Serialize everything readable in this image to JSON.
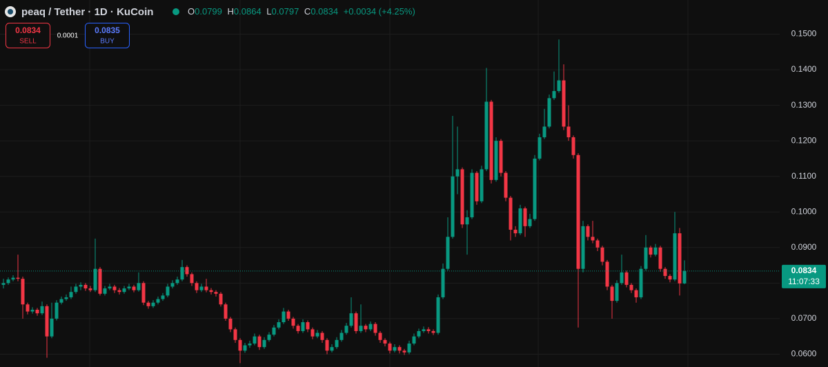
{
  "chart_data": {
    "type": "candlestick",
    "title": "peaq / Tether · 1D · KuCoin",
    "open": [
      0.0795,
      0.08,
      0.081,
      0.0815,
      0.0812,
      0.074,
      0.072,
      0.0725,
      0.0715,
      0.0735,
      0.065,
      0.07,
      0.0745,
      0.0755,
      0.076,
      0.0775,
      0.079,
      0.0795,
      0.0785,
      0.078,
      0.084,
      0.077,
      0.0785,
      0.079,
      0.078,
      0.0775,
      0.0785,
      0.079,
      0.078,
      0.08,
      0.0745,
      0.0735,
      0.0745,
      0.0755,
      0.0765,
      0.079,
      0.08,
      0.081,
      0.0845,
      0.0825,
      0.08,
      0.078,
      0.079,
      0.078,
      0.0775,
      0.077,
      0.074,
      0.07,
      0.067,
      0.064,
      0.061,
      0.0625,
      0.063,
      0.065,
      0.062,
      0.064,
      0.0655,
      0.0675,
      0.069,
      0.072,
      0.07,
      0.068,
      0.0665,
      0.069,
      0.067,
      0.065,
      0.066,
      0.064,
      0.061,
      0.062,
      0.064,
      0.066,
      0.068,
      0.0715,
      0.0665,
      0.068,
      0.067,
      0.0685,
      0.066,
      0.064,
      0.063,
      0.061,
      0.062,
      0.061,
      0.0605,
      0.063,
      0.065,
      0.0665,
      0.067,
      0.0665,
      0.066,
      0.076,
      0.084,
      0.093,
      0.11,
      0.112,
      0.0965,
      0.0985,
      0.111,
      0.103,
      0.112,
      0.131,
      0.109,
      0.12,
      0.111,
      0.104,
      0.095,
      0.094,
      0.101,
      0.096,
      0.098,
      0.115,
      0.121,
      0.124,
      0.132,
      0.134,
      0.137,
      0.124,
      0.121,
      0.116,
      0.084,
      0.096,
      0.093,
      0.092,
      0.09,
      0.086,
      0.079,
      0.075,
      0.08,
      0.083,
      0.0795,
      0.078,
      0.076,
      0.084,
      0.09,
      0.088,
      0.09,
      0.084,
      0.082,
      0.081,
      0.094,
      0.0799
    ],
    "high": [
      0.0812,
      0.0816,
      0.0822,
      0.088,
      0.0818,
      0.0745,
      0.0732,
      0.073,
      0.0748,
      0.074,
      0.0745,
      0.0752,
      0.0762,
      0.0768,
      0.079,
      0.0798,
      0.0802,
      0.08,
      0.0792,
      0.0925,
      0.0845,
      0.0792,
      0.0798,
      0.0795,
      0.0786,
      0.0792,
      0.0798,
      0.0795,
      0.083,
      0.0805,
      0.075,
      0.0752,
      0.0762,
      0.0772,
      0.0798,
      0.0808,
      0.0818,
      0.0865,
      0.085,
      0.083,
      0.0805,
      0.0798,
      0.0812,
      0.0786,
      0.078,
      0.0775,
      0.0745,
      0.0705,
      0.0675,
      0.0645,
      0.0632,
      0.0638,
      0.0658,
      0.0655,
      0.0648,
      0.0662,
      0.0682,
      0.0698,
      0.073,
      0.0725,
      0.0705,
      0.0685,
      0.0698,
      0.0695,
      0.0675,
      0.0668,
      0.0665,
      0.0645,
      0.0628,
      0.0648,
      0.0668,
      0.0688,
      0.076,
      0.072,
      0.074,
      0.0685,
      0.0692,
      0.069,
      0.0665,
      0.0645,
      0.0635,
      0.0628,
      0.0625,
      0.0615,
      0.0638,
      0.0658,
      0.0672,
      0.0678,
      0.0676,
      0.067,
      0.0768,
      0.0855,
      0.0985,
      0.127,
      0.124,
      0.1125,
      0.1005,
      0.112,
      0.1115,
      0.113,
      0.1405,
      0.1315,
      0.121,
      0.1205,
      0.1115,
      0.1045,
      0.096,
      0.102,
      0.1015,
      0.0995,
      0.116,
      0.122,
      0.129,
      0.133,
      0.1395,
      0.1485,
      0.1415,
      0.13,
      0.1215,
      0.1165,
      0.0975,
      0.0965,
      0.0975,
      0.0925,
      0.0905,
      0.0865,
      0.0795,
      0.0808,
      0.088,
      0.0835,
      0.08,
      0.0785,
      0.0848,
      0.0935,
      0.0905,
      0.091,
      0.0905,
      0.0845,
      0.0825,
      0.1,
      0.0955,
      0.0864
    ],
    "low": [
      0.0785,
      0.0795,
      0.0805,
      0.0805,
      0.07,
      0.0712,
      0.0714,
      0.0708,
      0.071,
      0.059,
      0.0645,
      0.0695,
      0.074,
      0.075,
      0.0755,
      0.077,
      0.078,
      0.0778,
      0.0775,
      0.0775,
      0.0765,
      0.0765,
      0.078,
      0.0772,
      0.0768,
      0.077,
      0.078,
      0.0774,
      0.0776,
      0.0738,
      0.0728,
      0.073,
      0.074,
      0.075,
      0.076,
      0.0785,
      0.0795,
      0.0805,
      0.0818,
      0.0792,
      0.0772,
      0.0775,
      0.0774,
      0.0768,
      0.0762,
      0.0734,
      0.0694,
      0.0662,
      0.0632,
      0.0575,
      0.0604,
      0.0618,
      0.0625,
      0.0612,
      0.0615,
      0.0635,
      0.065,
      0.067,
      0.0685,
      0.0694,
      0.0672,
      0.0658,
      0.066,
      0.0662,
      0.0642,
      0.0645,
      0.0632,
      0.06,
      0.0605,
      0.0615,
      0.0635,
      0.0655,
      0.0675,
      0.0658,
      0.066,
      0.0662,
      0.0665,
      0.0652,
      0.0632,
      0.0622,
      0.0602,
      0.0605,
      0.0602,
      0.0598,
      0.06,
      0.0625,
      0.0645,
      0.066,
      0.0658,
      0.0654,
      0.0655,
      0.0755,
      0.0835,
      0.0925,
      0.105,
      0.0955,
      0.088,
      0.098,
      0.102,
      0.1025,
      0.1115,
      0.108,
      0.1085,
      0.11,
      0.103,
      0.092,
      0.093,
      0.0935,
      0.093,
      0.0955,
      0.0975,
      0.1145,
      0.1205,
      0.1235,
      0.1315,
      0.1335,
      0.123,
      0.12,
      0.115,
      0.0675,
      0.083,
      0.092,
      0.0912,
      0.089,
      0.085,
      0.078,
      0.07,
      0.0745,
      0.0795,
      0.0788,
      0.0772,
      0.0745,
      0.0755,
      0.0835,
      0.0872,
      0.0875,
      0.0832,
      0.0812,
      0.0802,
      0.0805,
      0.0765,
      0.0797
    ],
    "close": [
      0.08,
      0.081,
      0.0815,
      0.0812,
      0.074,
      0.072,
      0.0725,
      0.0715,
      0.0735,
      0.065,
      0.07,
      0.0745,
      0.0755,
      0.076,
      0.0775,
      0.079,
      0.0795,
      0.0785,
      0.078,
      0.084,
      0.077,
      0.0785,
      0.079,
      0.078,
      0.0775,
      0.0785,
      0.079,
      0.078,
      0.08,
      0.0745,
      0.0735,
      0.0745,
      0.0755,
      0.0765,
      0.079,
      0.08,
      0.081,
      0.0845,
      0.0825,
      0.08,
      0.078,
      0.079,
      0.078,
      0.0775,
      0.077,
      0.074,
      0.07,
      0.067,
      0.064,
      0.061,
      0.0625,
      0.063,
      0.065,
      0.062,
      0.064,
      0.0655,
      0.0675,
      0.069,
      0.072,
      0.07,
      0.068,
      0.0665,
      0.069,
      0.067,
      0.065,
      0.066,
      0.064,
      0.061,
      0.062,
      0.064,
      0.066,
      0.068,
      0.0715,
      0.0665,
      0.068,
      0.067,
      0.0685,
      0.066,
      0.064,
      0.063,
      0.061,
      0.062,
      0.061,
      0.0605,
      0.063,
      0.065,
      0.0665,
      0.067,
      0.0665,
      0.066,
      0.076,
      0.084,
      0.093,
      0.11,
      0.112,
      0.0965,
      0.0985,
      0.111,
      0.103,
      0.112,
      0.131,
      0.109,
      0.12,
      0.111,
      0.104,
      0.095,
      0.094,
      0.101,
      0.096,
      0.098,
      0.115,
      0.121,
      0.124,
      0.132,
      0.134,
      0.137,
      0.124,
      0.121,
      0.116,
      0.084,
      0.096,
      0.093,
      0.092,
      0.09,
      0.086,
      0.079,
      0.075,
      0.08,
      0.083,
      0.0795,
      0.078,
      0.076,
      0.084,
      0.09,
      0.088,
      0.09,
      0.084,
      0.082,
      0.081,
      0.094,
      0.0799,
      0.0834
    ],
    "up_color": "#089981",
    "down_color": "#f23645",
    "ylim": [
      0.0564,
      0.1596
    ],
    "yticks": [
      {
        "value": 0.06,
        "label": "0.0600"
      },
      {
        "value": 0.07,
        "label": "0.0700"
      },
      {
        "value": 0.08,
        "label": "0.0800"
      },
      {
        "value": 0.09,
        "label": "0.0900"
      },
      {
        "value": 0.1,
        "label": "0.1000"
      },
      {
        "value": 0.11,
        "label": "0.1100"
      },
      {
        "value": 0.12,
        "label": "0.1200"
      },
      {
        "value": 0.13,
        "label": "0.1300"
      },
      {
        "value": 0.14,
        "label": "0.1400"
      },
      {
        "value": 0.15,
        "label": "0.1500"
      }
    ],
    "grid": true
  },
  "header": {
    "ohlc_labels": [
      "O",
      "H",
      "L",
      "C"
    ],
    "change": "+0.0034 (+4.25%)"
  },
  "trade": {
    "sell_price": 0.0834,
    "sell_label": "SELL",
    "spread": 0.0001,
    "buy_price": 0.0835,
    "buy_label": "BUY"
  },
  "price_tag": {
    "countdown": "11:07:33"
  }
}
